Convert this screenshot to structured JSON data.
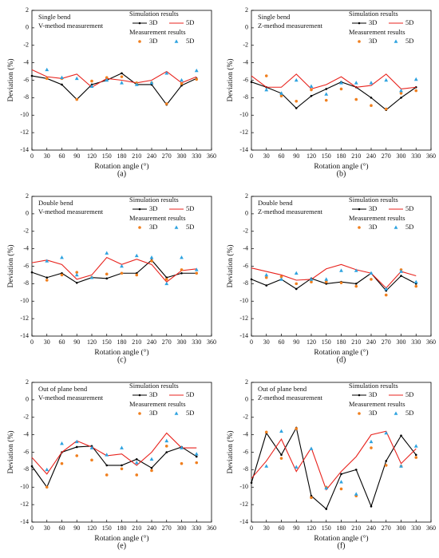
{
  "chart_data": [
    {
      "type": "line_scatter",
      "notes": [
        "Single bend",
        "V-method measurement"
      ],
      "caption": "(a)",
      "xlabel": "Rotation angle (°)",
      "ylabel": "Deviation (%)",
      "xlim": [
        0,
        360
      ],
      "xticks": [
        0,
        30,
        60,
        90,
        120,
        150,
        180,
        210,
        240,
        270,
        300,
        330,
        360
      ],
      "ylim": [
        -14,
        2
      ],
      "yticks": [
        -14,
        -12,
        -10,
        -8,
        -6,
        -4,
        -2,
        0,
        2
      ],
      "legend_titles": [
        "Simulation results",
        "Measurement results"
      ],
      "series": [
        {
          "name": "3D",
          "type": "line",
          "color": "#000000",
          "x": [
            0,
            30,
            60,
            90,
            120,
            150,
            180,
            210,
            240,
            270,
            300,
            330
          ],
          "values": [
            -5.5,
            -5.8,
            -6.5,
            -8.2,
            -6.5,
            -6.0,
            -5.2,
            -6.5,
            -6.5,
            -8.8,
            -6.6,
            -5.8
          ]
        },
        {
          "name": "5D",
          "type": "line",
          "color": "#e8221c",
          "x": [
            0,
            30,
            60,
            90,
            120,
            150,
            180,
            210,
            240,
            270,
            300,
            330
          ],
          "values": [
            -4.8,
            -5.6,
            -5.8,
            -5.3,
            -6.8,
            -5.8,
            -6.0,
            -6.3,
            -6.0,
            -5.0,
            -6.3,
            -5.6
          ]
        },
        {
          "name": "3D",
          "type": "scatter",
          "color": "#f07f1e",
          "x": [
            30,
            60,
            90,
            120,
            150,
            180,
            210,
            240,
            270,
            300,
            330
          ],
          "values": [
            -5.8,
            -5.8,
            -8.2,
            -6.1,
            -5.7,
            -5.6,
            -6.3,
            -6.3,
            -8.7,
            -6.4,
            -5.9
          ]
        },
        {
          "name": "5D",
          "type": "scatter",
          "color": "#2ea3e0",
          "x": [
            30,
            60,
            90,
            120,
            150,
            180,
            210,
            240,
            270,
            300,
            330
          ],
          "values": [
            -4.8,
            -5.7,
            -5.8,
            -6.7,
            -6.0,
            -6.3,
            -6.5,
            -6.3,
            -5.2,
            -6.0,
            -4.9
          ]
        }
      ]
    },
    {
      "type": "line_scatter",
      "notes": [
        "Single bend",
        "Z-method measurement"
      ],
      "caption": "(b)",
      "xlabel": "Rotation angle (°)",
      "ylabel": "Deviation (%)",
      "xlim": [
        0,
        360
      ],
      "xticks": [
        0,
        30,
        60,
        90,
        120,
        150,
        180,
        210,
        240,
        270,
        300,
        330,
        360
      ],
      "ylim": [
        -14,
        2
      ],
      "yticks": [
        -14,
        -12,
        -10,
        -8,
        -6,
        -4,
        -2,
        0,
        2
      ],
      "legend_titles": [
        "Simulation results",
        "Measurement results"
      ],
      "series": [
        {
          "name": "3D",
          "type": "line",
          "color": "#000000",
          "x": [
            0,
            30,
            60,
            90,
            120,
            150,
            180,
            210,
            240,
            270,
            300,
            330
          ],
          "values": [
            -6.2,
            -6.8,
            -7.5,
            -9.2,
            -7.8,
            -7.0,
            -6.2,
            -6.8,
            -8.0,
            -9.4,
            -8.0,
            -6.8
          ]
        },
        {
          "name": "5D",
          "type": "line",
          "color": "#e8221c",
          "x": [
            0,
            30,
            60,
            90,
            120,
            150,
            180,
            210,
            240,
            270,
            300,
            330
          ],
          "values": [
            -5.5,
            -6.8,
            -6.8,
            -5.3,
            -7.0,
            -6.5,
            -5.6,
            -6.8,
            -6.6,
            -5.3,
            -7.0,
            -6.8
          ]
        },
        {
          "name": "3D",
          "type": "scatter",
          "color": "#f07f1e",
          "x": [
            30,
            60,
            90,
            120,
            150,
            180,
            210,
            240,
            270,
            300,
            330
          ],
          "values": [
            -5.5,
            -7.8,
            -8.4,
            -7.1,
            -8.3,
            -7.0,
            -8.2,
            -8.9,
            -9.3,
            -7.5,
            -7.2
          ]
        },
        {
          "name": "5D",
          "type": "scatter",
          "color": "#2ea3e0",
          "x": [
            30,
            60,
            90,
            120,
            150,
            180,
            210,
            240,
            270,
            300,
            330
          ],
          "values": [
            -7.1,
            -7.5,
            -6.0,
            -6.7,
            -7.6,
            -6.3,
            -6.3,
            -6.3,
            -6.0,
            -7.2,
            -5.9
          ]
        }
      ]
    },
    {
      "type": "line_scatter",
      "notes": [
        "Double bend",
        "V-method measurement"
      ],
      "caption": "(c)",
      "xlabel": "Rotation angle (°)",
      "ylabel": "Deviation (%)",
      "xlim": [
        0,
        360
      ],
      "xticks": [
        0,
        30,
        60,
        90,
        120,
        150,
        180,
        210,
        240,
        270,
        300,
        330,
        360
      ],
      "ylim": [
        -14,
        2
      ],
      "yticks": [
        -14,
        -12,
        -10,
        -8,
        -6,
        -4,
        -2,
        0,
        2
      ],
      "legend_titles": [
        "Simulation results",
        "Measurement results"
      ],
      "series": [
        {
          "name": "3D",
          "type": "line",
          "color": "#000000",
          "x": [
            0,
            30,
            60,
            90,
            120,
            150,
            180,
            210,
            240,
            270,
            300,
            330
          ],
          "values": [
            -6.7,
            -7.3,
            -6.8,
            -7.9,
            -7.3,
            -7.4,
            -6.8,
            -6.8,
            -5.3,
            -7.3,
            -6.8,
            -6.8
          ]
        },
        {
          "name": "5D",
          "type": "line",
          "color": "#e8221c",
          "x": [
            0,
            30,
            60,
            90,
            120,
            150,
            180,
            210,
            240,
            270,
            300,
            330
          ],
          "values": [
            -5.6,
            -5.3,
            -5.8,
            -7.5,
            -7.0,
            -5.0,
            -5.8,
            -5.2,
            -5.8,
            -7.8,
            -6.5,
            -6.3
          ]
        },
        {
          "name": "3D",
          "type": "scatter",
          "color": "#f07f1e",
          "x": [
            30,
            60,
            90,
            120,
            150,
            180,
            210,
            240,
            270,
            300,
            330
          ],
          "values": [
            -7.6,
            -7.0,
            -6.7,
            -7.3,
            -6.9,
            -6.8,
            -7.0,
            -5.4,
            -7.5,
            -6.4,
            -6.8
          ]
        },
        {
          "name": "5D",
          "type": "scatter",
          "color": "#2ea3e0",
          "x": [
            30,
            60,
            90,
            120,
            150,
            180,
            210,
            240,
            270,
            300,
            330
          ],
          "values": [
            -5.4,
            -5.0,
            -7.0,
            -7.3,
            -4.5,
            -6.0,
            -4.8,
            -5.0,
            -8.0,
            -5.0,
            -6.4
          ]
        }
      ]
    },
    {
      "type": "line_scatter",
      "notes": [
        "Double bend",
        "Z-method measurement"
      ],
      "caption": "(d)",
      "xlabel": "Rotation angle (°)",
      "ylabel": "Deviation (%)",
      "xlim": [
        0,
        360
      ],
      "xticks": [
        0,
        30,
        60,
        90,
        120,
        150,
        180,
        210,
        240,
        270,
        300,
        330,
        360
      ],
      "ylim": [
        -14,
        2
      ],
      "yticks": [
        -14,
        -12,
        -10,
        -8,
        -6,
        -4,
        -2,
        0,
        2
      ],
      "legend_titles": [
        "Simulation results",
        "Measurement results"
      ],
      "series": [
        {
          "name": "3D",
          "type": "line",
          "color": "#000000",
          "x": [
            0,
            30,
            60,
            90,
            120,
            150,
            180,
            210,
            240,
            270,
            300,
            330
          ],
          "values": [
            -7.5,
            -8.2,
            -7.5,
            -8.6,
            -7.4,
            -8.0,
            -7.8,
            -8.0,
            -6.8,
            -8.8,
            -7.1,
            -8.0
          ]
        },
        {
          "name": "5D",
          "type": "line",
          "color": "#e8221c",
          "x": [
            0,
            30,
            60,
            90,
            120,
            150,
            180,
            210,
            240,
            270,
            300,
            330
          ],
          "values": [
            -6.2,
            -6.6,
            -7.0,
            -7.6,
            -7.5,
            -6.3,
            -5.8,
            -6.4,
            -6.8,
            -8.5,
            -6.6,
            -7.1
          ]
        },
        {
          "name": "3D",
          "type": "scatter",
          "color": "#f07f1e",
          "x": [
            30,
            60,
            90,
            120,
            150,
            180,
            210,
            240,
            270,
            300,
            330
          ],
          "values": [
            -7.3,
            -7.2,
            -8.0,
            -7.8,
            -7.8,
            -7.9,
            -8.3,
            -7.5,
            -9.3,
            -6.4,
            -8.3
          ]
        },
        {
          "name": "5D",
          "type": "scatter",
          "color": "#2ea3e0",
          "x": [
            30,
            60,
            90,
            120,
            150,
            180,
            210,
            240,
            270,
            300,
            330
          ],
          "values": [
            -7.0,
            -7.5,
            -6.8,
            -7.5,
            -7.5,
            -6.5,
            -6.5,
            -6.8,
            -8.6,
            -6.6,
            -7.8
          ]
        }
      ]
    },
    {
      "type": "line_scatter",
      "notes": [
        "Out of plane bend",
        "V-method measurement"
      ],
      "caption": "(e)",
      "xlabel": "Rotation angle (°)",
      "ylabel": "Deviation (%)",
      "xlim": [
        0,
        360
      ],
      "xticks": [
        0,
        30,
        60,
        90,
        120,
        150,
        180,
        210,
        240,
        270,
        300,
        330,
        360
      ],
      "ylim": [
        -14,
        2
      ],
      "yticks": [
        -14,
        -12,
        -10,
        -8,
        -6,
        -4,
        -2,
        0,
        2
      ],
      "legend_titles": [
        "Simulation results",
        "Measurement results"
      ],
      "series": [
        {
          "name": "3D",
          "type": "line",
          "color": "#000000",
          "x": [
            0,
            30,
            60,
            90,
            120,
            150,
            180,
            210,
            240,
            270,
            300,
            330
          ],
          "values": [
            -7.6,
            -10.0,
            -6.0,
            -5.4,
            -5.3,
            -7.5,
            -7.5,
            -6.8,
            -7.8,
            -6.0,
            -5.4,
            -6.5
          ]
        },
        {
          "name": "5D",
          "type": "line",
          "color": "#e8221c",
          "x": [
            0,
            30,
            60,
            90,
            120,
            150,
            180,
            210,
            240,
            270,
            300,
            330
          ],
          "values": [
            -6.6,
            -8.5,
            -6.0,
            -4.7,
            -5.4,
            -6.4,
            -6.2,
            -7.5,
            -6.0,
            -3.8,
            -5.5,
            -5.5
          ]
        },
        {
          "name": "3D",
          "type": "scatter",
          "color": "#f07f1e",
          "x": [
            30,
            60,
            90,
            120,
            150,
            180,
            210,
            240,
            270,
            300,
            330
          ],
          "values": [
            -10.0,
            -7.3,
            -6.4,
            -6.9,
            -8.6,
            -7.9,
            -8.6,
            -8.1,
            -5.3,
            -7.3,
            -7.2
          ]
        },
        {
          "name": "5D",
          "type": "scatter",
          "color": "#2ea3e0",
          "x": [
            30,
            60,
            90,
            120,
            150,
            180,
            210,
            240,
            270,
            300,
            330
          ],
          "values": [
            -8.0,
            -5.0,
            -4.8,
            -5.5,
            -6.3,
            -5.5,
            -7.2,
            -6.8,
            -4.7,
            -5.5,
            -6.2
          ]
        }
      ]
    },
    {
      "type": "line_scatter",
      "notes": [
        "Out of plane bend",
        "Z-method measurement"
      ],
      "caption": "(f)",
      "xlabel": "Rotation angle (°)",
      "ylabel": "Deviation (%)",
      "xlim": [
        0,
        360
      ],
      "xticks": [
        0,
        30,
        60,
        90,
        120,
        150,
        180,
        210,
        240,
        270,
        300,
        330,
        360
      ],
      "ylim": [
        -14,
        2
      ],
      "yticks": [
        -14,
        -12,
        -10,
        -8,
        -6,
        -4,
        -2,
        0,
        2
      ],
      "legend_titles": [
        "Simulation results",
        "Measurement results"
      ],
      "series": [
        {
          "name": "3D",
          "type": "line",
          "color": "#000000",
          "x": [
            0,
            30,
            60,
            90,
            120,
            150,
            180,
            210,
            240,
            270,
            300,
            330
          ],
          "values": [
            -9.5,
            -3.8,
            -6.3,
            -3.2,
            -11.0,
            -12.5,
            -8.5,
            -8.0,
            -12.2,
            -7.0,
            -4.1,
            -6.3
          ]
        },
        {
          "name": "5D",
          "type": "line",
          "color": "#e8221c",
          "x": [
            0,
            30,
            60,
            90,
            120,
            150,
            180,
            210,
            240,
            270,
            300,
            330
          ],
          "values": [
            -9.0,
            -7.0,
            -4.5,
            -8.2,
            -5.5,
            -10.3,
            -8.2,
            -6.5,
            -4.0,
            -3.6,
            -7.3,
            -5.6
          ]
        },
        {
          "name": "3D",
          "type": "scatter",
          "color": "#f07f1e",
          "x": [
            30,
            60,
            90,
            120,
            150,
            180,
            210,
            240,
            270,
            300,
            330
          ],
          "values": [
            -3.7,
            -6.7,
            -3.3,
            -11.2,
            -10.0,
            -10.2,
            -11.0,
            -5.5,
            -7.5,
            -7.6,
            -6.6
          ]
        },
        {
          "name": "5D",
          "type": "scatter",
          "color": "#2ea3e0",
          "x": [
            30,
            60,
            90,
            120,
            150,
            180,
            210,
            240,
            270,
            300,
            330
          ],
          "values": [
            -7.6,
            -3.6,
            -7.7,
            -5.6,
            -10.1,
            -9.4,
            -10.8,
            -4.8,
            -3.8,
            -7.6,
            -5.3
          ]
        }
      ]
    }
  ]
}
